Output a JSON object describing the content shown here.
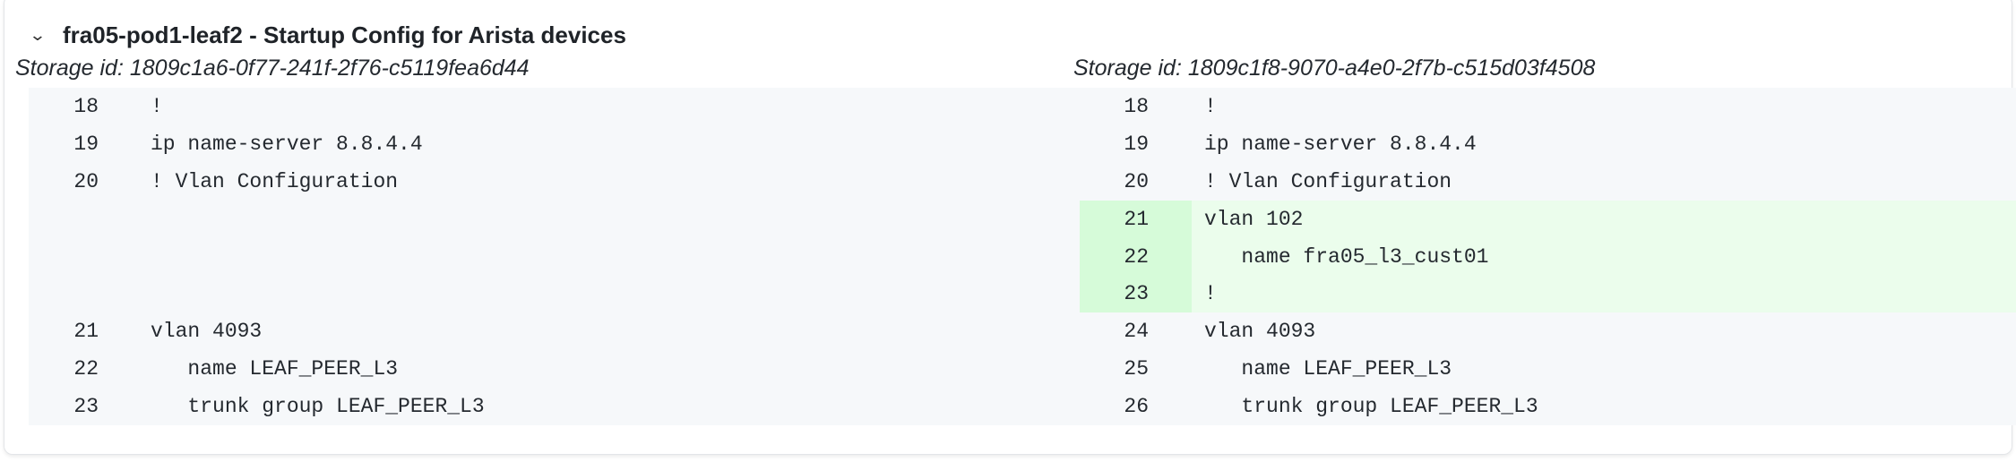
{
  "header": {
    "chevron_icon": "chevron-down-icon",
    "title": "fra05-pod1-leaf2 - Startup Config for Arista devices"
  },
  "left": {
    "storage_id": "Storage id: 1809c1a6-0f77-241f-2f76-c5119fea6d44",
    "rows": [
      {
        "num": "18",
        "code": "!",
        "type": "context"
      },
      {
        "num": "19",
        "code": "ip name-server 8.8.4.4",
        "type": "context"
      },
      {
        "num": "20",
        "code": "! Vlan Configuration",
        "type": "context"
      },
      {
        "num": "",
        "code": "",
        "type": "empty"
      },
      {
        "num": "",
        "code": "",
        "type": "empty"
      },
      {
        "num": "",
        "code": "",
        "type": "empty"
      },
      {
        "num": "21",
        "code": "vlan 4093",
        "type": "context"
      },
      {
        "num": "22",
        "code": "   name LEAF_PEER_L3",
        "type": "context"
      },
      {
        "num": "23",
        "code": "   trunk group LEAF_PEER_L3",
        "type": "context"
      }
    ]
  },
  "right": {
    "storage_id": "Storage id: 1809c1f8-9070-a4e0-2f7b-c515d03f4508",
    "rows": [
      {
        "num": "18",
        "code": "!",
        "type": "context"
      },
      {
        "num": "19",
        "code": "ip name-server 8.8.4.4",
        "type": "context"
      },
      {
        "num": "20",
        "code": "! Vlan Configuration",
        "type": "context"
      },
      {
        "num": "21",
        "code": "vlan 102",
        "type": "add"
      },
      {
        "num": "22",
        "code": "   name fra05_l3_cust01",
        "type": "add"
      },
      {
        "num": "23",
        "code": "!",
        "type": "add"
      },
      {
        "num": "24",
        "code": "vlan 4093",
        "type": "context"
      },
      {
        "num": "25",
        "code": "   name LEAF_PEER_L3",
        "type": "context"
      },
      {
        "num": "26",
        "code": "   trunk group LEAF_PEER_L3",
        "type": "context"
      }
    ]
  },
  "colors": {
    "added_line": "#ebfdec",
    "added_gutter": "#d6fbd9",
    "code_bg": "#f6f8fa"
  }
}
